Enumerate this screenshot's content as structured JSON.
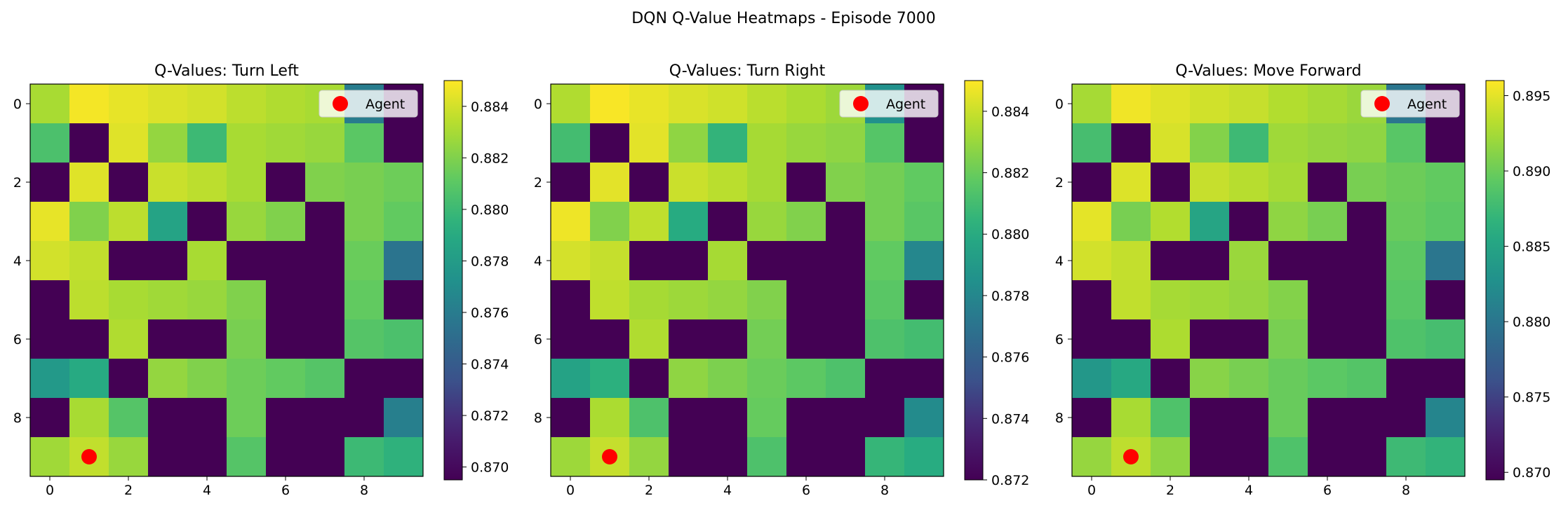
{
  "figure_title": "DQN Q-Value Heatmaps - Episode 7000",
  "legend_label": "Agent",
  "agent_color": "#ff0000",
  "mask_color": "#440154",
  "chart_data": [
    {
      "type": "heatmap",
      "title": "Q-Values: Turn Left",
      "xlabel": "",
      "ylabel": "",
      "x_ticks": [
        0,
        2,
        4,
        6,
        8
      ],
      "y_ticks": [
        0,
        2,
        4,
        6,
        8
      ],
      "grid_size": 10,
      "colormap": "viridis",
      "vmin": 0.8695,
      "vmax": 0.885,
      "colorbar_ticks": [
        "0.870",
        "0.872",
        "0.874",
        "0.876",
        "0.878",
        "0.880",
        "0.882",
        "0.884"
      ],
      "agent": {
        "x": 1,
        "y": 9
      },
      "legend_position": "upper right",
      "values": [
        [
          0.883,
          0.8848,
          0.8845,
          0.8842,
          0.884,
          0.8835,
          0.8832,
          0.883,
          0.876,
          null
        ],
        [
          0.8805,
          null,
          0.8843,
          0.8825,
          0.88,
          0.883,
          0.8828,
          0.8826,
          0.881,
          null
        ],
        [
          null,
          0.8843,
          null,
          0.8838,
          0.8835,
          0.883,
          null,
          0.882,
          0.8818,
          0.8815
        ],
        [
          0.8845,
          0.882,
          0.8835,
          0.8785,
          null,
          0.8826,
          0.882,
          null,
          0.8818,
          0.8812
        ],
        [
          0.884,
          0.8836,
          null,
          null,
          0.883,
          null,
          null,
          null,
          0.8814,
          0.8755
        ],
        [
          null,
          0.8835,
          0.883,
          0.8828,
          0.8826,
          0.882,
          null,
          null,
          0.8812,
          null
        ],
        [
          null,
          null,
          0.8832,
          null,
          null,
          0.8818,
          null,
          null,
          0.8808,
          0.8805
        ],
        [
          0.8778,
          0.879,
          null,
          0.8825,
          0.882,
          0.8815,
          0.8812,
          0.8808,
          null,
          null
        ],
        [
          null,
          0.883,
          0.8808,
          null,
          null,
          0.8815,
          null,
          null,
          null,
          0.8762
        ],
        [
          0.8828,
          0.8836,
          0.8826,
          null,
          null,
          0.8808,
          null,
          null,
          0.88,
          0.8795
        ]
      ]
    },
    {
      "type": "heatmap",
      "title": "Q-Values: Turn Right",
      "xlabel": "",
      "ylabel": "",
      "x_ticks": [
        0,
        2,
        4,
        6,
        8
      ],
      "y_ticks": [
        0,
        2,
        4,
        6,
        8
      ],
      "grid_size": 10,
      "colormap": "viridis",
      "vmin": 0.872,
      "vmax": 0.885,
      "colorbar_ticks": [
        "0.872",
        "0.874",
        "0.876",
        "0.878",
        "0.880",
        "0.882",
        "0.884"
      ],
      "agent": {
        "x": 1,
        "y": 9
      },
      "legend_position": "upper right",
      "values": [
        [
          0.8835,
          0.8849,
          0.8846,
          0.8843,
          0.8841,
          0.8837,
          0.8834,
          0.8831,
          0.8785,
          null
        ],
        [
          0.881,
          null,
          0.8845,
          0.8828,
          0.8805,
          0.8833,
          0.883,
          0.8828,
          0.8815,
          null
        ],
        [
          null,
          0.8845,
          null,
          0.884,
          0.8837,
          0.8833,
          null,
          0.8825,
          0.8822,
          0.8818
        ],
        [
          0.8847,
          0.8825,
          0.8838,
          0.88,
          null,
          0.883,
          0.8825,
          null,
          0.8822,
          0.8816
        ],
        [
          0.8842,
          0.8839,
          null,
          null,
          0.8833,
          null,
          null,
          null,
          0.8818,
          0.878
        ],
        [
          null,
          0.8838,
          0.8833,
          0.8831,
          0.8829,
          0.8825,
          null,
          null,
          0.8816,
          null
        ],
        [
          null,
          null,
          0.8835,
          null,
          null,
          0.8822,
          null,
          null,
          0.8813,
          0.881
        ],
        [
          0.8795,
          0.8803,
          null,
          0.8828,
          0.8824,
          0.882,
          0.8817,
          0.8813,
          null,
          null
        ],
        [
          null,
          0.8834,
          0.8813,
          null,
          null,
          0.8819,
          null,
          null,
          null,
          0.8782
        ],
        [
          0.8831,
          0.8839,
          0.8829,
          null,
          null,
          0.8813,
          null,
          null,
          0.8806,
          0.8801
        ]
      ]
    },
    {
      "type": "heatmap",
      "title": "Q-Values: Move Forward",
      "xlabel": "",
      "ylabel": "",
      "x_ticks": [
        0,
        2,
        4,
        6,
        8
      ],
      "y_ticks": [
        0,
        2,
        4,
        6,
        8
      ],
      "grid_size": 10,
      "colormap": "viridis",
      "vmin": 0.8695,
      "vmax": 0.896,
      "colorbar_ticks": [
        "0.870",
        "0.875",
        "0.880",
        "0.885",
        "0.890",
        "0.895"
      ],
      "agent": {
        "x": 1,
        "y": 9
      },
      "legend_position": "upper right",
      "values": [
        [
          0.8925,
          0.8955,
          0.8948,
          0.8942,
          0.8938,
          0.893,
          0.8925,
          0.892,
          0.88,
          null
        ],
        [
          0.888,
          null,
          0.8945,
          0.891,
          0.8875,
          0.8922,
          0.8918,
          0.8915,
          0.889,
          null
        ],
        [
          null,
          0.8947,
          null,
          0.8938,
          0.8932,
          0.8925,
          null,
          0.8905,
          0.89,
          0.8895
        ],
        [
          0.895,
          0.8905,
          0.893,
          0.885,
          null,
          0.8915,
          0.8905,
          null,
          0.8898,
          0.8892
        ],
        [
          0.8943,
          0.8937,
          null,
          null,
          0.892,
          null,
          null,
          null,
          0.8893,
          0.88
        ],
        [
          null,
          0.8936,
          0.8925,
          0.8922,
          0.8918,
          0.891,
          null,
          null,
          0.889,
          null
        ],
        [
          null,
          null,
          0.8928,
          null,
          null,
          0.8905,
          null,
          null,
          0.8885,
          0.888
        ],
        [
          0.8835,
          0.8855,
          null,
          0.8912,
          0.8905,
          0.8898,
          0.8892,
          0.8888,
          null,
          null
        ],
        [
          null,
          0.8926,
          0.8885,
          null,
          null,
          0.8898,
          null,
          null,
          null,
          0.8815
        ],
        [
          0.8918,
          0.8935,
          0.8915,
          null,
          null,
          0.8885,
          null,
          null,
          0.8875,
          0.8868
        ]
      ]
    }
  ]
}
